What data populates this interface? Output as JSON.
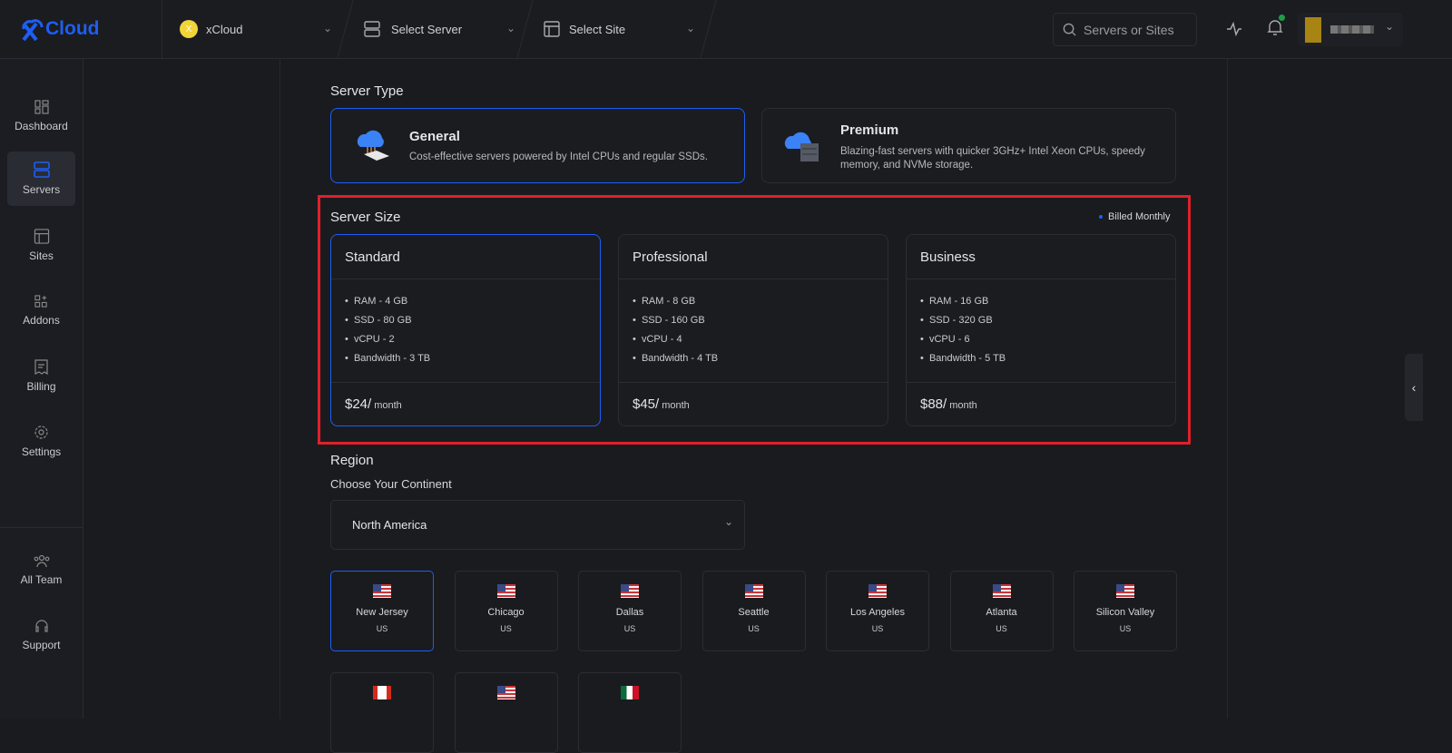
{
  "header": {
    "logo_text": "Cloud",
    "team": {
      "initial": "X",
      "name": "xCloud"
    },
    "server_select": "Select Server",
    "site_select": "Select Site",
    "search_placeholder": "Servers or Sites"
  },
  "sidebar": {
    "items": [
      {
        "label": "Dashboard"
      },
      {
        "label": "Servers",
        "active": true
      },
      {
        "label": "Sites"
      },
      {
        "label": "Addons"
      },
      {
        "label": "Billing"
      },
      {
        "label": "Settings"
      }
    ],
    "bottom": [
      {
        "label": "All Team"
      },
      {
        "label": "Support"
      }
    ]
  },
  "server_type": {
    "heading": "Server Type",
    "options": [
      {
        "name": "General",
        "desc": "Cost-effective servers powered by Intel CPUs and regular SSDs.",
        "selected": true
      },
      {
        "name": "Premium",
        "desc": "Blazing-fast servers with quicker 3GHz+ Intel Xeon CPUs, speedy memory, and NVMe storage."
      }
    ]
  },
  "server_size": {
    "heading": "Server Size",
    "billing": "Billed Monthly",
    "plans": [
      {
        "name": "Standard",
        "specs": [
          "RAM - 4 GB",
          "SSD - 80 GB",
          "vCPU - 2",
          "Bandwidth - 3 TB"
        ],
        "price": "$24/",
        "period": "month",
        "selected": true
      },
      {
        "name": "Professional",
        "specs": [
          "RAM - 8 GB",
          "SSD - 160 GB",
          "vCPU - 4",
          "Bandwidth - 4 TB"
        ],
        "price": "$45/",
        "period": "month"
      },
      {
        "name": "Business",
        "specs": [
          "RAM - 16 GB",
          "SSD - 320 GB",
          "vCPU - 6",
          "Bandwidth - 5 TB"
        ],
        "price": "$88/",
        "period": "month"
      }
    ]
  },
  "region": {
    "heading": "Region",
    "continent_label": "Choose Your Continent",
    "continent": "North America",
    "locations": [
      {
        "city": "New Jersey",
        "country": "US",
        "flag": "us",
        "selected": true
      },
      {
        "city": "Chicago",
        "country": "US",
        "flag": "us"
      },
      {
        "city": "Dallas",
        "country": "US",
        "flag": "us"
      },
      {
        "city": "Seattle",
        "country": "US",
        "flag": "us"
      },
      {
        "city": "Los Angeles",
        "country": "US",
        "flag": "us"
      },
      {
        "city": "Atlanta",
        "country": "US",
        "flag": "us"
      },
      {
        "city": "Silicon Valley",
        "country": "US",
        "flag": "us"
      },
      {
        "flag": "ca"
      },
      {
        "flag": "us"
      },
      {
        "flag": "mx"
      }
    ]
  },
  "colors": {
    "accent": "#1d5ef5",
    "highlight": "#e0202a",
    "background": "#1a1b1f"
  }
}
